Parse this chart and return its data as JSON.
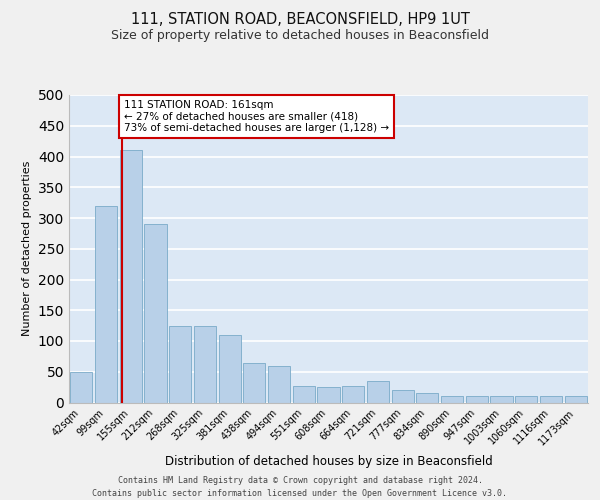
{
  "title_line1": "111, STATION ROAD, BEACONSFIELD, HP9 1UT",
  "title_line2": "Size of property relative to detached houses in Beaconsfield",
  "xlabel": "Distribution of detached houses by size in Beaconsfield",
  "ylabel": "Number of detached properties",
  "footer_line1": "Contains HM Land Registry data © Crown copyright and database right 2024.",
  "footer_line2": "Contains public sector information licensed under the Open Government Licence v3.0.",
  "categories": [
    "42sqm",
    "99sqm",
    "155sqm",
    "212sqm",
    "268sqm",
    "325sqm",
    "381sqm",
    "438sqm",
    "494sqm",
    "551sqm",
    "608sqm",
    "664sqm",
    "721sqm",
    "777sqm",
    "834sqm",
    "890sqm",
    "947sqm",
    "1003sqm",
    "1060sqm",
    "1116sqm",
    "1173sqm"
  ],
  "values": [
    50,
    320,
    410,
    290,
    125,
    125,
    110,
    65,
    60,
    27,
    25,
    27,
    35,
    20,
    15,
    10,
    10,
    10,
    10,
    10,
    10
  ],
  "bar_color": "#b8d0e8",
  "bar_edge_color": "#7aaac8",
  "bg_color": "#dce8f5",
  "grid_color": "#ffffff",
  "fig_bg_color": "#f0f0f0",
  "vline_color": "#cc0000",
  "vline_x": 1.65,
  "annotation_text": "111 STATION ROAD: 161sqm\n← 27% of detached houses are smaller (418)\n73% of semi-detached houses are larger (1,128) →",
  "annotation_box_facecolor": "#ffffff",
  "annotation_box_edgecolor": "#cc0000",
  "ylim": [
    0,
    500
  ],
  "yticks": [
    0,
    50,
    100,
    150,
    200,
    250,
    300,
    350,
    400,
    450,
    500
  ],
  "title1_fontsize": 10.5,
  "title2_fontsize": 9,
  "ylabel_fontsize": 8,
  "xlabel_fontsize": 8.5,
  "tick_fontsize": 7,
  "annot_fontsize": 7.5,
  "footer_fontsize": 6
}
